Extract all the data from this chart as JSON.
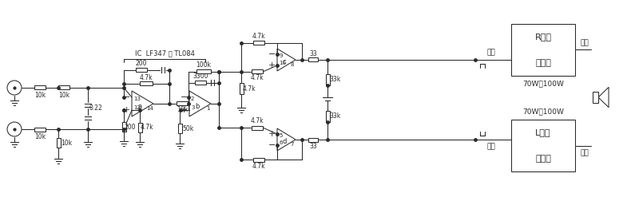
{
  "bg": "#ffffff",
  "lc": "#2a2a2a",
  "lw": 0.75,
  "figsize": [
    8.0,
    2.47
  ],
  "dpi": 100,
  "labels": {
    "ic": "IC  LF347 或 TL084",
    "r_amp_l1": "R声道",
    "r_amp_l2": "功放板",
    "l_amp_l1": "L声道",
    "l_amp_l2": "功放板",
    "r_power": "70W～100W",
    "l_power": "70W～100W",
    "r_in": "输入",
    "l_in": "输入",
    "r_out": "输出",
    "l_out": "输出"
  }
}
